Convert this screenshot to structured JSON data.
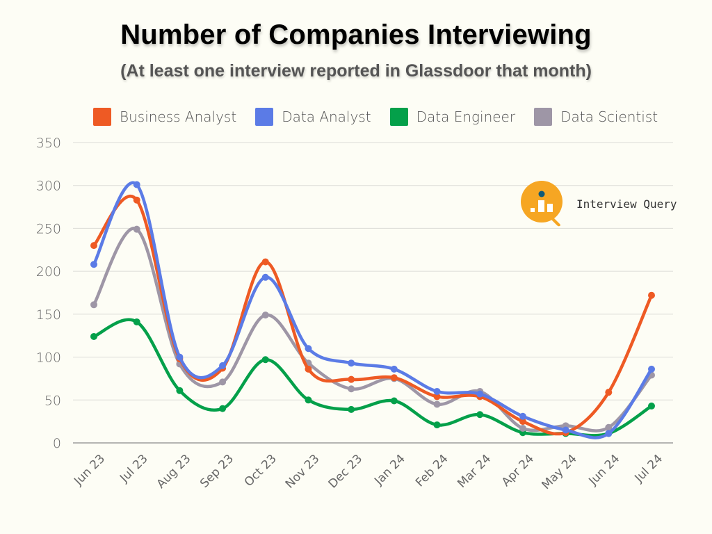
{
  "chart_data": {
    "type": "line",
    "title": "Number of Companies Interviewing",
    "subtitle": "(At least one interview reported in Glassdoor that month)",
    "xlabel": "",
    "ylabel": "",
    "ylim": [
      0,
      350
    ],
    "yticks": [
      0,
      50,
      100,
      150,
      200,
      250,
      300,
      350
    ],
    "grid": true,
    "legend_position": "top",
    "categories": [
      "Jun 23",
      "Jul 23",
      "Aug 23",
      "Sep 23",
      "Oct 23",
      "Nov 23",
      "Dec 23",
      "Jan 24",
      "Feb 24",
      "Mar 24",
      "Apr 24",
      "May 24",
      "Jun 24",
      "Jul 24"
    ],
    "series": [
      {
        "name": "Business Analyst",
        "color": "#ee5a24",
        "values": [
          230,
          283,
          98,
          87,
          211,
          86,
          74,
          76,
          54,
          54,
          25,
          12,
          59,
          172
        ]
      },
      {
        "name": "Data Analyst",
        "color": "#5b7be6",
        "values": [
          208,
          301,
          100,
          90,
          193,
          110,
          93,
          86,
          60,
          57,
          31,
          15,
          11,
          86
        ]
      },
      {
        "name": "Data Engineer",
        "color": "#04a04a",
        "values": [
          124,
          141,
          61,
          40,
          97,
          50,
          39,
          49,
          21,
          33,
          12,
          11,
          11,
          43
        ]
      },
      {
        "name": "Data Scientist",
        "color": "#9e96a6",
        "values": [
          161,
          249,
          92,
          71,
          149,
          93,
          63,
          75,
          45,
          60,
          17,
          20,
          18,
          79
        ]
      }
    ]
  },
  "logo": {
    "text": "Interview Query",
    "icon": "interview-query-logo-icon"
  }
}
